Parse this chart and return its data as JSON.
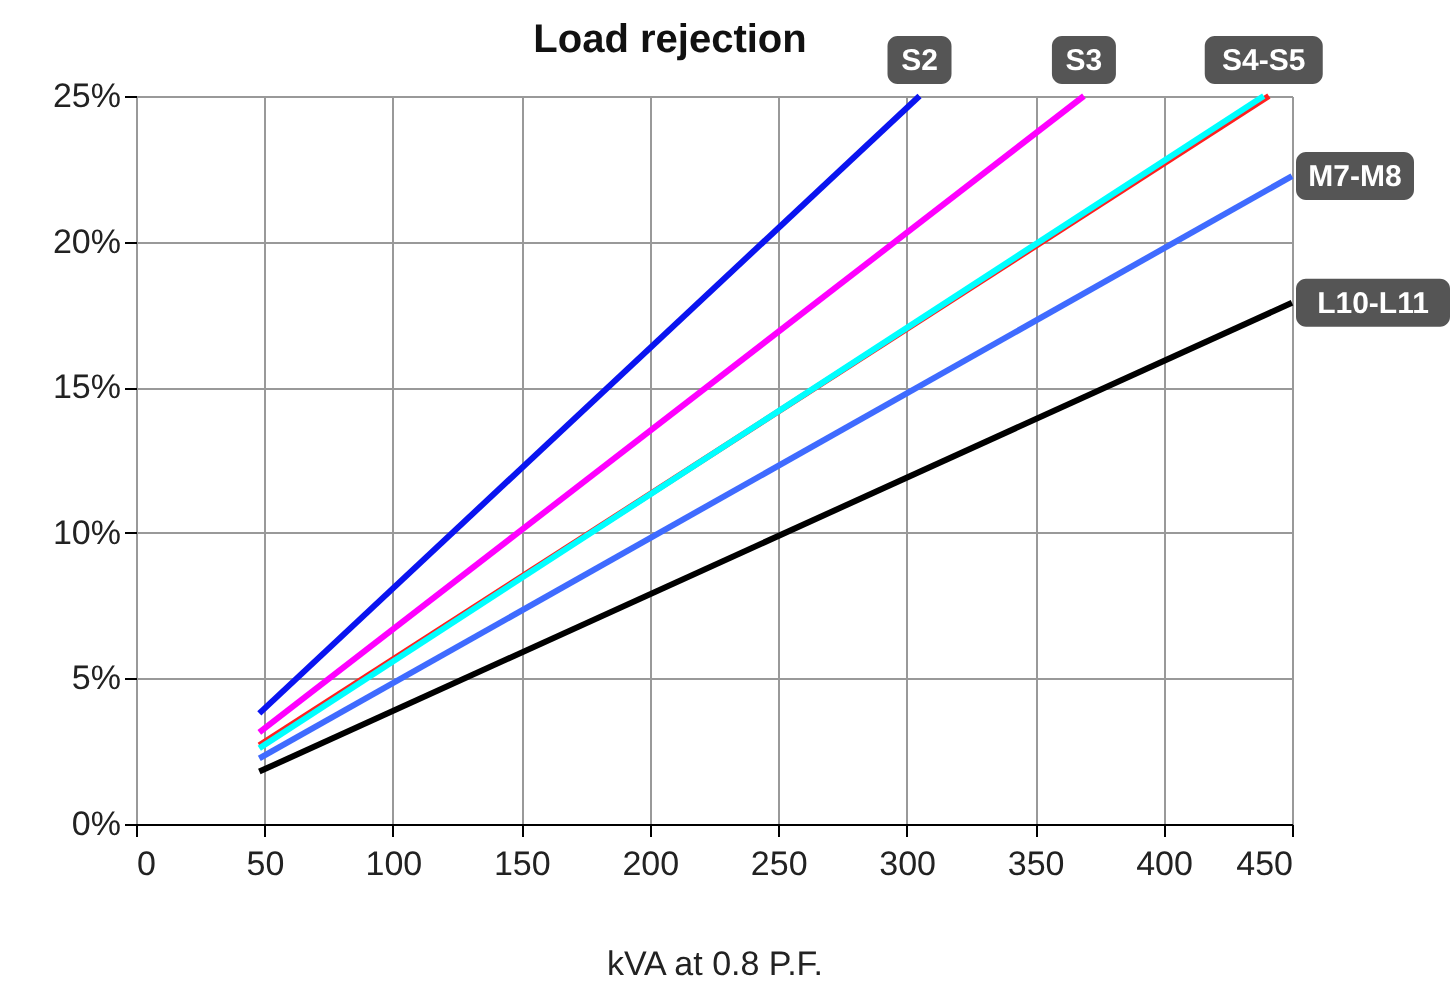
{
  "chart_data": {
    "type": "line",
    "title": "Load rejection",
    "xlabel": "kVA at 0.8 P.F.",
    "series": [
      {
        "name": "S2",
        "color": "#0a14f0",
        "x": [
          48,
          305
        ],
        "values": [
          3.8,
          25
        ]
      },
      {
        "name": "S3",
        "color": "#ff00ff",
        "x": [
          48,
          369
        ],
        "values": [
          3.15,
          25
        ]
      },
      {
        "name": null,
        "color": "#ff2020",
        "x": [
          48,
          441
        ],
        "values": [
          2.7,
          25
        ]
      },
      {
        "name": "S4-S5",
        "color": "#00ffff",
        "x": [
          48,
          439
        ],
        "values": [
          2.6,
          25
        ]
      },
      {
        "name": "M7-M8",
        "color": "#3f6bff",
        "x": [
          48,
          450
        ],
        "values": [
          2.25,
          22.25
        ]
      },
      {
        "name": "L10-L11",
        "color": "#000000",
        "x": [
          48,
          450
        ],
        "values": [
          1.8,
          17.9
        ]
      }
    ],
    "xlim": [
      0,
      450
    ],
    "xticks": [
      0,
      50,
      100,
      150,
      200,
      250,
      300,
      350,
      400,
      450
    ],
    "ylim": [
      0,
      25
    ],
    "yticks": [
      {
        "value": 0,
        "label": "0%"
      },
      {
        "value": 5,
        "label": "5%"
      },
      {
        "value": 10,
        "label": "10%"
      },
      {
        "value": 15,
        "label": "15%"
      },
      {
        "value": 20,
        "label": "20%"
      },
      {
        "value": 25,
        "label": "25%"
      }
    ],
    "grid": true,
    "legend": false,
    "marker": "none",
    "line_style": "solid"
  }
}
